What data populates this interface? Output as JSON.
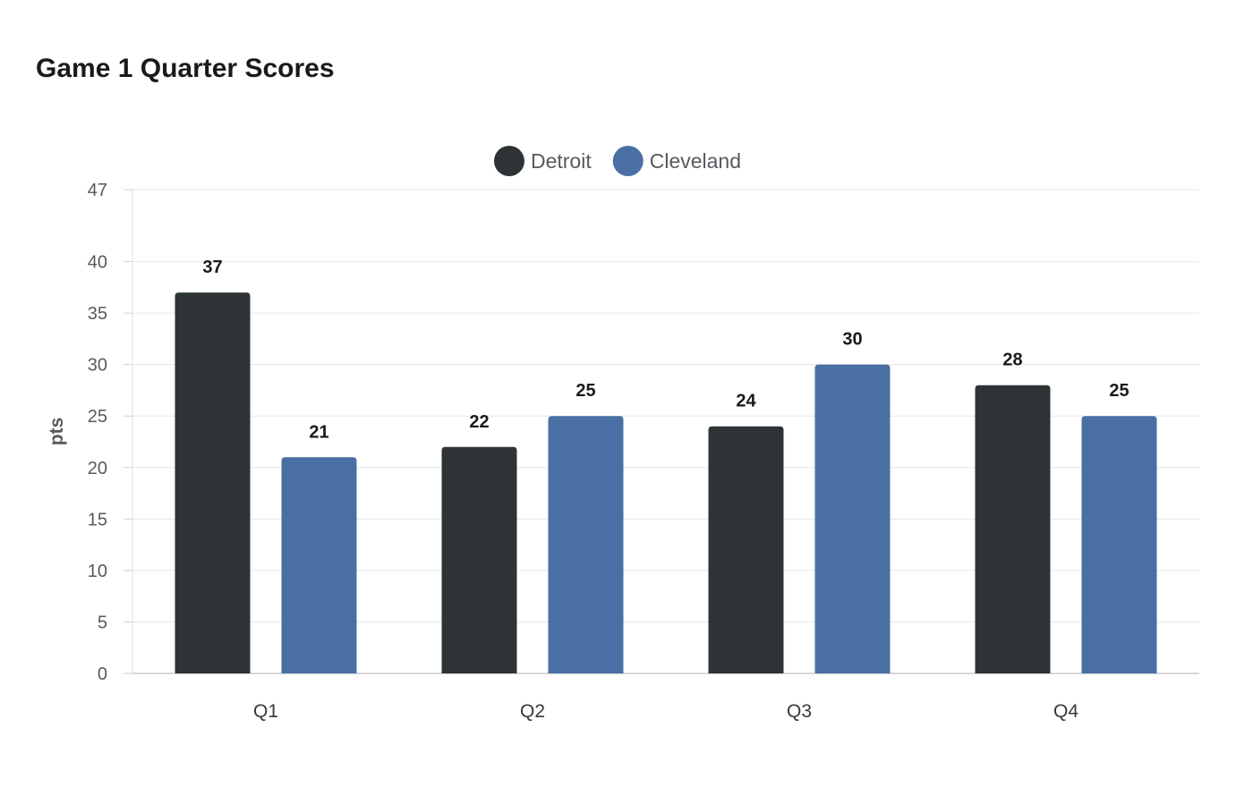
{
  "chart_data": {
    "type": "bar",
    "title": "Game 1 Quarter Scores",
    "xlabel": "",
    "ylabel": "pts",
    "categories": [
      "Q1",
      "Q2",
      "Q3",
      "Q4"
    ],
    "series": [
      {
        "name": "Detroit",
        "color": "#2e3436",
        "values": [
          37,
          22,
          24,
          28
        ]
      },
      {
        "name": "Cleveland",
        "color": "#4a6fa5",
        "values": [
          21,
          25,
          30,
          25
        ]
      }
    ],
    "ylim": [
      0,
      47
    ],
    "yticks": [
      0,
      5,
      10,
      15,
      20,
      25,
      30,
      35,
      40,
      47
    ],
    "grid": true,
    "legend": "top-center",
    "data_labels": true
  }
}
